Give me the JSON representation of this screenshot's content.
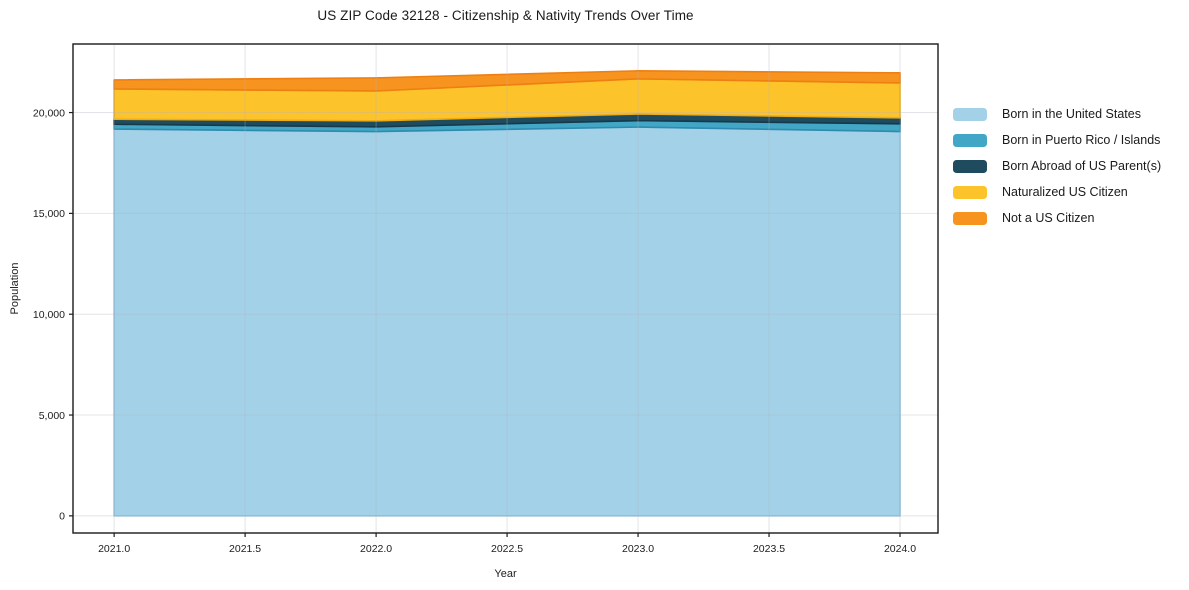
{
  "figure": {
    "background": "#ffffff",
    "frame_color": "#1a1a1a",
    "grid_color": "rgba(178,178,190,0.35)",
    "tick_color": "#1c1c1c",
    "text_color": "#1c1c1c"
  },
  "chart_data": {
    "type": "area",
    "stacked": true,
    "title": "US ZIP Code 32128 - Citizenship & Nativity Trends Over Time",
    "xlabel": "Year",
    "ylabel": "Population",
    "grid": true,
    "legend_position": "right",
    "x": [
      2021,
      2022,
      2023,
      2024
    ],
    "series": [
      {
        "name": "Born in the United States",
        "fill": "#A3D1E8",
        "edge": "#8CC2DC",
        "values": [
          19180,
          19060,
          19280,
          19060
        ]
      },
      {
        "name": "Born in Puerto Rico / Islands",
        "fill": "#42A7C6",
        "edge": "#2E8BAD",
        "values": [
          240,
          230,
          320,
          380
        ]
      },
      {
        "name": "Born Abroad of US Parent(s)",
        "fill": "#1F4B5E",
        "edge": "#16394A",
        "values": [
          250,
          300,
          330,
          300
        ]
      },
      {
        "name": "Naturalized US Citizen",
        "fill": "#FDC32B",
        "edge": "#EFAC14",
        "values": [
          1500,
          1480,
          1740,
          1730
        ]
      },
      {
        "name": "Not a US Citizen",
        "fill": "#F79420",
        "edge": "#EE7F12",
        "values": [
          450,
          650,
          400,
          500
        ]
      }
    ],
    "totals": [
      21620,
      21720,
      22070,
      21970
    ],
    "xlim": [
      2020.843,
      2024.145
    ],
    "ylim": [
      -850,
      23400
    ],
    "xticks": {
      "values": [
        2021.0,
        2021.5,
        2022.0,
        2022.5,
        2023.0,
        2023.5,
        2024.0
      ],
      "labels": [
        "2021.0",
        "2021.5",
        "2022.0",
        "2022.5",
        "2023.0",
        "2023.5",
        "2024.0"
      ]
    },
    "yticks": {
      "values": [
        0,
        5000,
        10000,
        15000,
        20000
      ],
      "labels": [
        "0",
        "5,000",
        "10,000",
        "15,000",
        "20,000"
      ]
    }
  }
}
